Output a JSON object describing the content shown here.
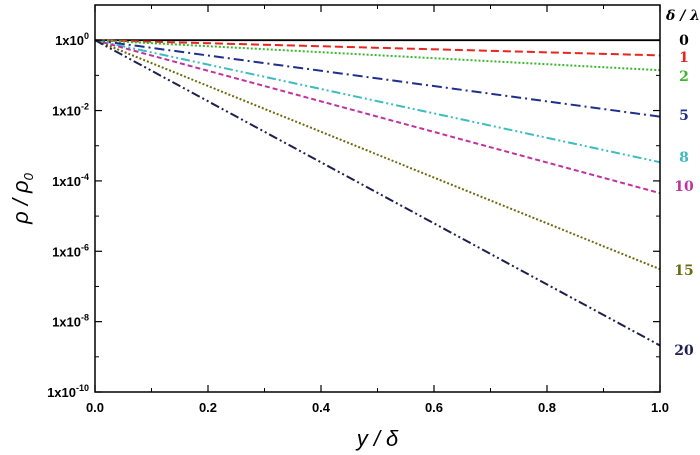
{
  "chart_data": {
    "type": "line",
    "xlabel": "y / δ",
    "ylabel": "ρ / ρ0",
    "ylabel_main": "ρ / ρ",
    "ylabel_sub": "0",
    "xlim": [
      0,
      1
    ],
    "ylim_log10": [
      -10,
      1
    ],
    "y_scale": "log",
    "grid": false,
    "x_ticks": [
      {
        "value": 0.0,
        "label": "0.0"
      },
      {
        "value": 0.2,
        "label": "0.2"
      },
      {
        "value": 0.4,
        "label": "0.4"
      },
      {
        "value": 0.6,
        "label": "0.6"
      },
      {
        "value": 0.8,
        "label": "0.8"
      },
      {
        "value": 1.0,
        "label": "1.0"
      }
    ],
    "y_ticks": [
      {
        "exp": 0,
        "base": "1x10",
        "sup": "0"
      },
      {
        "exp": -2,
        "base": "1x10",
        "sup": "-2"
      },
      {
        "exp": -4,
        "base": "1x10",
        "sup": "-4"
      },
      {
        "exp": -6,
        "base": "1x10",
        "sup": "-6"
      },
      {
        "exp": -8,
        "base": "1x10",
        "sup": "-8"
      },
      {
        "exp": -10,
        "base": "1x10",
        "sup": "-10"
      }
    ],
    "legend_title": "δ / λ",
    "series": [
      {
        "name": "0",
        "x": [
          0,
          1
        ],
        "y": [
          1,
          1
        ],
        "color": "#000000",
        "dash": "solid"
      },
      {
        "name": "1",
        "x": [
          0,
          1
        ],
        "y": [
          1,
          0.37
        ],
        "color": "#e8261e",
        "dash": "dash"
      },
      {
        "name": "2",
        "x": [
          0,
          1
        ],
        "y": [
          1,
          0.14
        ],
        "color": "#38b82c",
        "dash": "dot"
      },
      {
        "name": "5",
        "x": [
          0,
          1
        ],
        "y": [
          1,
          0.0067
        ],
        "color": "#1e2f8c",
        "dash": "dashdot"
      },
      {
        "name": "8",
        "x": [
          0,
          1
        ],
        "y": [
          1,
          0.00034
        ],
        "color": "#3cbcc0",
        "dash": "dashdotdot"
      },
      {
        "name": "10",
        "x": [
          0,
          1
        ],
        "y": [
          1,
          4.5e-05
        ],
        "color": "#c0339f",
        "dash": "shortdash"
      },
      {
        "name": "15",
        "x": [
          0,
          1
        ],
        "y": [
          1,
          3.1e-07
        ],
        "color": "#6b6a0c",
        "dash": "dot"
      },
      {
        "name": "20",
        "x": [
          0,
          1
        ],
        "y": [
          1,
          2.1e-09
        ],
        "color": "#1f1f4f",
        "dash": "dashdotdot"
      }
    ]
  }
}
